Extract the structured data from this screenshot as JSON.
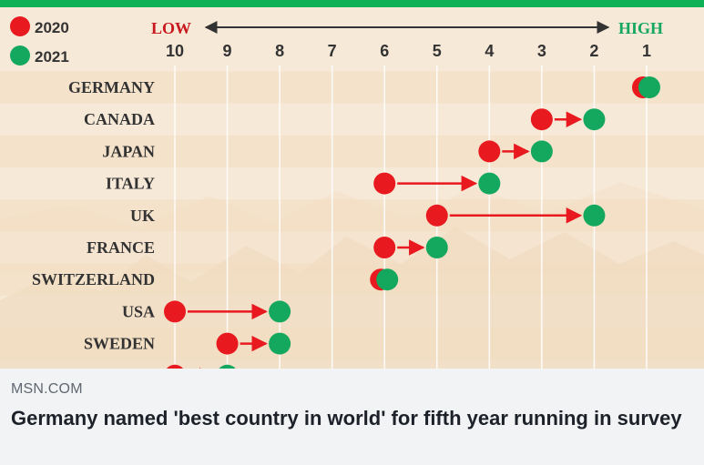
{
  "link_preview": {
    "source": "MSN.COM",
    "headline": "Germany named 'best country in world' for fifth year running in survey"
  },
  "colors": {
    "series_2020": "#e8191f",
    "series_2021": "#14a85e",
    "top_bar": "#0fb156",
    "low_label": "#c8191f",
    "high_label": "#14a85e",
    "text": "#333333"
  },
  "chart_data": {
    "type": "dot-plot",
    "scale_low_label": "LOW",
    "scale_high_label": "HIGH",
    "x_ticks": [
      "10",
      "9",
      "8",
      "7",
      "6",
      "5",
      "4",
      "3",
      "2",
      "1"
    ],
    "xlim": [
      10,
      1
    ],
    "legend_placement": "top-left",
    "series": [
      {
        "name": "2020",
        "color": "#e8191f"
      },
      {
        "name": "2021",
        "color": "#14a85e"
      }
    ],
    "rows": [
      {
        "country": "GERMANY",
        "rank_2020": 1,
        "rank_2021": 1
      },
      {
        "country": "CANADA",
        "rank_2020": 3,
        "rank_2021": 2
      },
      {
        "country": "JAPAN",
        "rank_2020": 4,
        "rank_2021": 3
      },
      {
        "country": "ITALY",
        "rank_2020": 6,
        "rank_2021": 4
      },
      {
        "country": "UK",
        "rank_2020": 5,
        "rank_2021": 2
      },
      {
        "country": "FRANCE",
        "rank_2020": 6,
        "rank_2021": 5
      },
      {
        "country": "SWITZERLAND",
        "rank_2020": 6,
        "rank_2021": 6
      },
      {
        "country": "USA",
        "rank_2020": 10,
        "rank_2021": 8
      },
      {
        "country": "SWEDEN",
        "rank_2020": 9,
        "rank_2021": 8
      },
      {
        "country": "",
        "rank_2020": 10,
        "rank_2021": 9
      }
    ]
  }
}
